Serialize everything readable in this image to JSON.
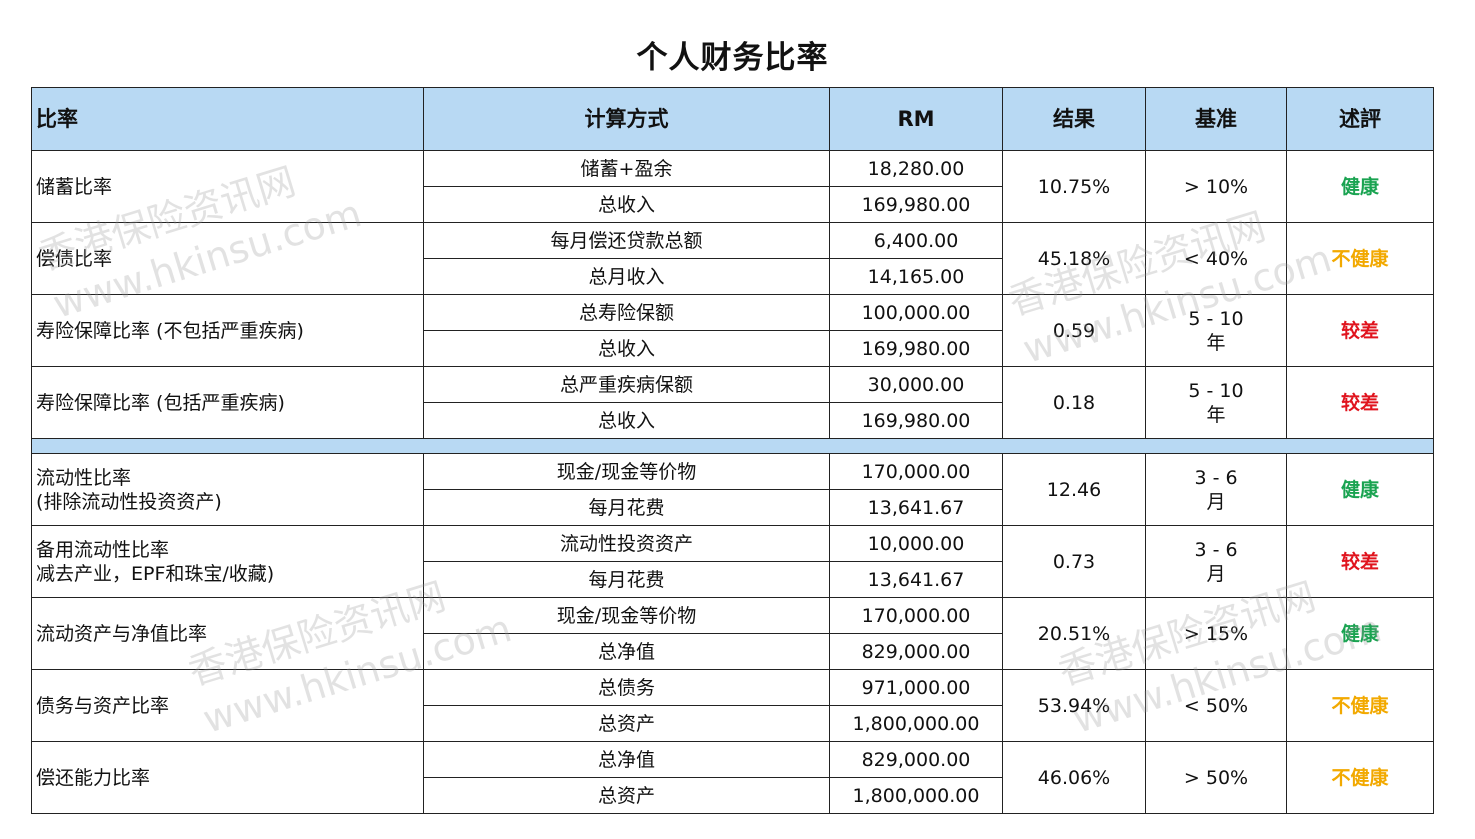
{
  "title": "个人财务比率",
  "headers": [
    "比率",
    "计算方式",
    "RM",
    "结果",
    "基准",
    "述評"
  ],
  "status_colors": {
    "健康": "#1aa351",
    "不健康": "#f2a900",
    "较差": "#e0141e"
  },
  "rows_group1": [
    {
      "name": [
        "储蓄比率"
      ],
      "method1": "储蓄+盈余",
      "rm1": "18,280.00",
      "method2": "总收入",
      "rm2": "169,980.00",
      "result": "10.75%",
      "benchmark": [
        "> 10%"
      ],
      "status": "健康"
    },
    {
      "name": [
        "偿债比率"
      ],
      "method1": "每月偿还贷款总额",
      "rm1": "6,400.00",
      "method2": "总月收入",
      "rm2": "14,165.00",
      "result": "45.18%",
      "benchmark": [
        "< 40%"
      ],
      "status": "不健康"
    },
    {
      "name": [
        "寿险保障比率 (不包括严重疾病)"
      ],
      "method1": "总寿险保额",
      "rm1": "100,000.00",
      "method2": "总收入",
      "rm2": "169,980.00",
      "result": "0.59",
      "benchmark": [
        "5 - 10",
        "年"
      ],
      "status": "较差"
    },
    {
      "name": [
        "寿险保障比率 (包括严重疾病)"
      ],
      "method1": "总严重疾病保额",
      "rm1": "30,000.00",
      "method2": "总收入",
      "rm2": "169,980.00",
      "result": "0.18",
      "benchmark": [
        "5 - 10",
        "年"
      ],
      "status": "较差"
    }
  ],
  "rows_group2": [
    {
      "name": [
        "流动性比率",
        "(排除流动性投资资产)"
      ],
      "method1": "现金/现金等价物",
      "rm1": "170,000.00",
      "method2": "每月花费",
      "rm2": "13,641.67",
      "result": "12.46",
      "benchmark": [
        "3 - 6",
        "月"
      ],
      "status": "健康"
    },
    {
      "name": [
        "备用流动性比率",
        "减去产业，EPF和珠宝/收藏)"
      ],
      "method1": "流动性投资资产",
      "rm1": "10,000.00",
      "method2": "每月花费",
      "rm2": "13,641.67",
      "result": "0.73",
      "benchmark": [
        "3 - 6",
        "月"
      ],
      "status": "较差"
    },
    {
      "name": [
        "流动资产与净值比率"
      ],
      "method1": "现金/现金等价物",
      "rm1": "170,000.00",
      "method2": "总净值",
      "rm2": "829,000.00",
      "result": "20.51%",
      "benchmark": [
        "> 15%"
      ],
      "status": "健康"
    },
    {
      "name": [
        "债务与资产比率"
      ],
      "method1": "总债务",
      "rm1": "971,000.00",
      "method2": "总资产",
      "rm2": "1,800,000.00",
      "result": "53.94%",
      "benchmark": [
        "< 50%"
      ],
      "status": "不健康"
    },
    {
      "name": [
        "偿还能力比率"
      ],
      "method1": "总净值",
      "rm1": "829,000.00",
      "method2": "总资产",
      "rm2": "1,800,000.00",
      "result": "46.06%",
      "benchmark": [
        "> 50%"
      ],
      "status": "不健康"
    }
  ],
  "watermarks": [
    "香港保险资讯网",
    "www.hkinsu.com"
  ]
}
